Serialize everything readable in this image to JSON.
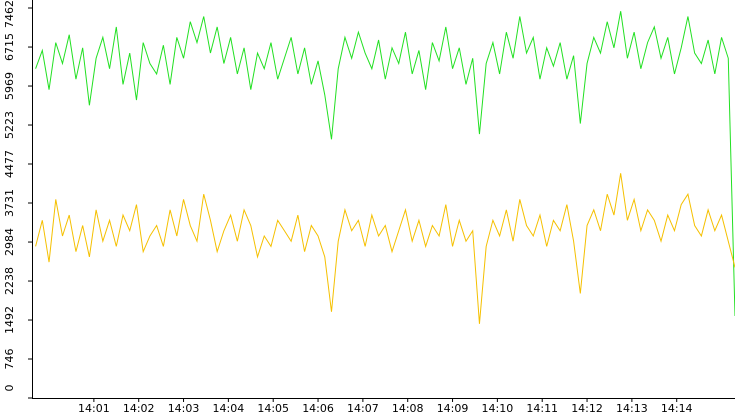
{
  "chart_data": {
    "type": "line",
    "x": [
      839.7,
      839.85,
      840,
      840.15,
      840.3,
      840.45,
      840.6,
      840.75,
      840.9,
      841.05,
      841.2,
      841.35,
      841.5,
      841.65,
      841.8,
      841.95,
      842.1,
      842.25,
      842.4,
      842.55,
      842.7,
      842.85,
      843,
      843.15,
      843.3,
      843.45,
      843.6,
      843.75,
      843.9,
      844.05,
      844.2,
      844.35,
      844.5,
      844.65,
      844.8,
      844.95,
      845.1,
      845.25,
      845.4,
      845.55,
      845.7,
      845.85,
      846,
      846.15,
      846.3,
      846.45,
      846.6,
      846.75,
      846.9,
      847.05,
      847.2,
      847.35,
      847.5,
      847.65,
      847.8,
      847.95,
      848.1,
      848.25,
      848.4,
      848.55,
      848.7,
      848.85,
      849,
      849.15,
      849.3,
      849.45,
      849.6,
      849.75,
      849.9,
      850.05,
      850.2,
      850.35,
      850.5,
      850.65,
      850.8,
      850.95,
      851.1,
      851.25,
      851.4,
      851.55,
      851.7,
      851.85,
      852,
      852.15,
      852.3,
      852.45,
      852.6,
      852.75,
      852.9,
      853.05,
      853.2,
      853.35,
      853.5,
      853.65,
      853.8,
      853.95,
      854.1,
      854.25,
      854.4,
      854.55,
      854.7,
      854.85,
      855,
      855.15,
      855.3
    ],
    "series": [
      {
        "color": "#22e022",
        "values": [
          6300,
          6650,
          5900,
          6800,
          6400,
          6950,
          6100,
          6700,
          5600,
          6500,
          6900,
          6300,
          7100,
          6000,
          6600,
          5700,
          6800,
          6400,
          6200,
          6750,
          6000,
          6900,
          6500,
          7200,
          6800,
          7300,
          6600,
          7100,
          6400,
          6900,
          6200,
          6700,
          5900,
          6600,
          6300,
          6800,
          6100,
          6500,
          6900,
          6200,
          6700,
          6000,
          6450,
          5800,
          4950,
          6300,
          6900,
          6500,
          7000,
          6600,
          6300,
          6850,
          6100,
          6700,
          6400,
          7000,
          6200,
          6650,
          5900,
          6800,
          6450,
          7100,
          6300,
          6700,
          6000,
          6500,
          5050,
          6400,
          6800,
          6200,
          7000,
          6500,
          7300,
          6600,
          6900,
          6100,
          6700,
          6350,
          6800,
          6100,
          6550,
          5250,
          6400,
          6900,
          6600,
          7200,
          6700,
          7400,
          6500,
          7000,
          6300,
          6800,
          7100,
          6500,
          6900,
          6200,
          6700,
          7300,
          6600,
          6400,
          6850,
          6200,
          6900,
          6500,
          1570
        ]
      },
      {
        "color": "#f5c000",
        "values": [
          2900,
          3400,
          2600,
          3800,
          3100,
          3500,
          2800,
          3300,
          2700,
          3600,
          3000,
          3400,
          2900,
          3500,
          3200,
          3700,
          2800,
          3100,
          3300,
          2900,
          3600,
          3100,
          3800,
          3300,
          3000,
          3900,
          3400,
          2800,
          3200,
          3500,
          3000,
          3600,
          3300,
          2700,
          3100,
          2900,
          3400,
          3200,
          3000,
          3500,
          2800,
          3300,
          3100,
          2700,
          1650,
          3000,
          3600,
          3200,
          3400,
          2900,
          3500,
          3100,
          3300,
          2800,
          3200,
          3600,
          3000,
          3400,
          2900,
          3300,
          3100,
          3700,
          2900,
          3400,
          3000,
          3200,
          1420,
          2900,
          3400,
          3100,
          3600,
          3000,
          3800,
          3300,
          3100,
          3500,
          2900,
          3400,
          3200,
          3700,
          3000,
          2000,
          3300,
          3600,
          3200,
          3900,
          3500,
          4300,
          3400,
          3800,
          3200,
          3600,
          3400,
          3000,
          3500,
          3200,
          3700,
          3900,
          3300,
          3100,
          3600,
          3200,
          3500,
          3000,
          2500
        ]
      }
    ],
    "xlim": [
      839.62,
      855.3
    ],
    "xticks": [
      {
        "value": 841,
        "label": "14:01"
      },
      {
        "value": 842,
        "label": "14:02"
      },
      {
        "value": 843,
        "label": "14:03"
      },
      {
        "value": 844,
        "label": "14:04"
      },
      {
        "value": 845,
        "label": "14:05"
      },
      {
        "value": 846,
        "label": "14:06"
      },
      {
        "value": 847,
        "label": "14:07"
      },
      {
        "value": 848,
        "label": "14:08"
      },
      {
        "value": 849,
        "label": "14:09"
      },
      {
        "value": 850,
        "label": "14:10"
      },
      {
        "value": 851,
        "label": "14:11"
      },
      {
        "value": 852,
        "label": "14:12"
      },
      {
        "value": 853,
        "label": "14:13"
      },
      {
        "value": 854,
        "label": "14:14"
      }
    ],
    "ylim": [
      0,
      7462
    ],
    "yticks": [
      0,
      746,
      1492,
      2238,
      2984,
      3731,
      4477,
      5223,
      5969,
      6715,
      7462
    ]
  }
}
